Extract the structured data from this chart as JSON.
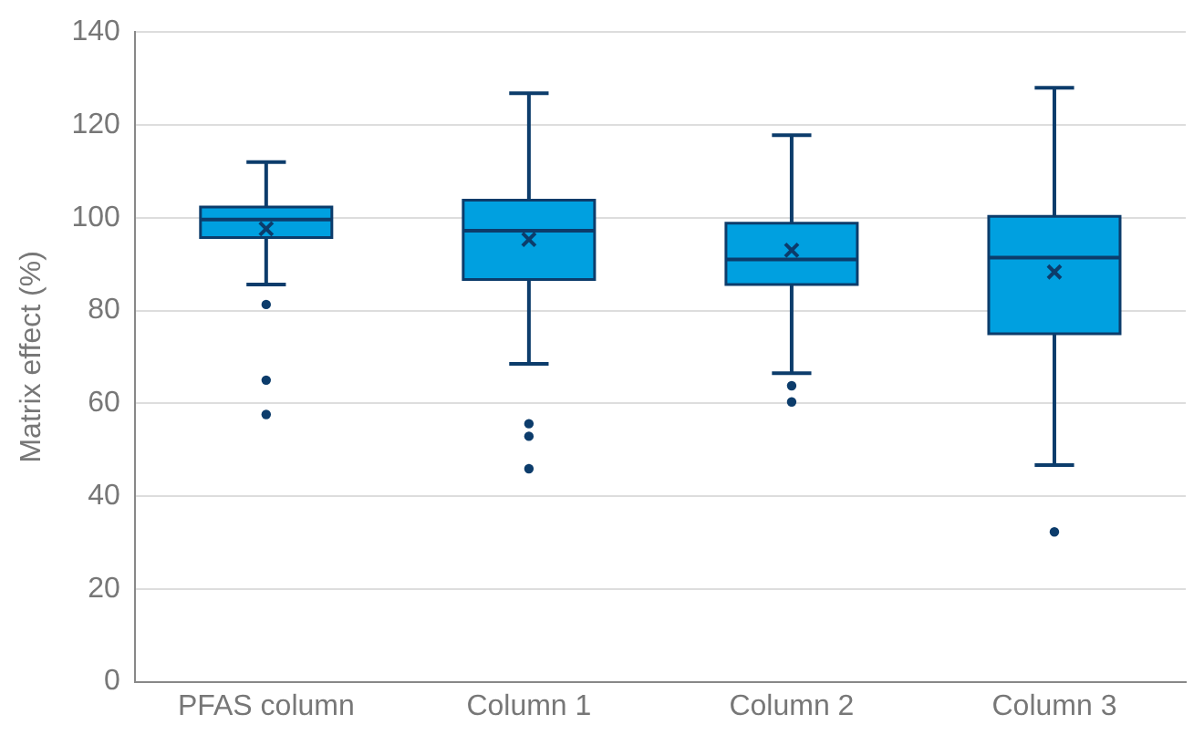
{
  "chart_data": {
    "type": "box",
    "ylabel": "Matrix effect (%)",
    "categories": [
      "PFAS column",
      "Column 1",
      "Column 2",
      "Column 3"
    ],
    "color": "#00a0e0",
    "boxes": [
      {
        "low": 85.6,
        "q1": 95.7,
        "median": 99.6,
        "q3": 102.3,
        "high": 112,
        "mean": 97.6,
        "outliers": [
          81.3,
          65,
          57.6
        ]
      },
      {
        "low": 68.5,
        "q1": 86.7,
        "median": 97.2,
        "q3": 103.8,
        "high": 126.8,
        "mean": 95.3,
        "outliers": [
          55.6,
          52.9,
          45.9
        ]
      },
      {
        "low": 66.5,
        "q1": 85.6,
        "median": 91,
        "q3": 98.8,
        "high": 117.8,
        "mean": 93,
        "outliers": [
          63.8,
          60.3
        ]
      },
      {
        "low": 46.7,
        "q1": 75,
        "median": 91.4,
        "q3": 100.3,
        "high": 128,
        "mean": 88.3,
        "outliers": [
          32.3
        ]
      }
    ],
    "ylim": [
      0,
      140
    ],
    "yticks": [
      0,
      20,
      40,
      60,
      80,
      100,
      120,
      140
    ],
    "grid": "y",
    "legend": false
  }
}
